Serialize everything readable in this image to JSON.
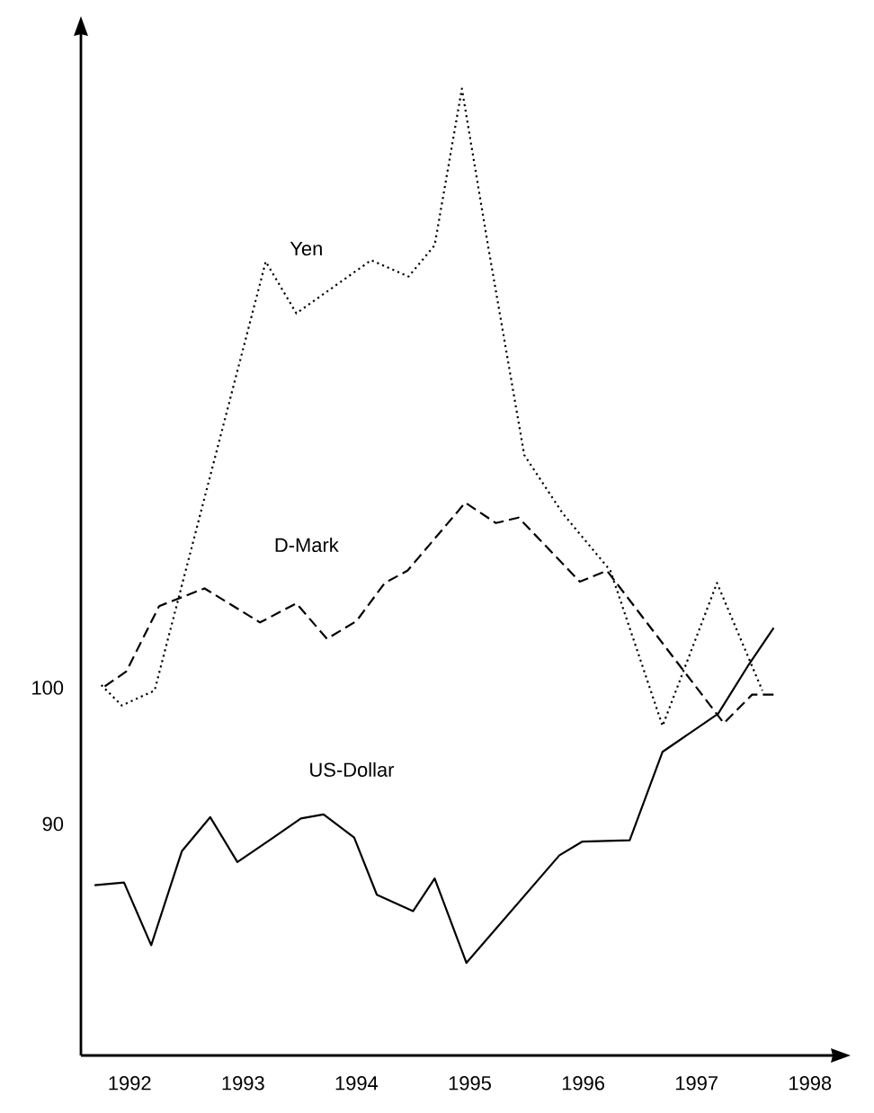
{
  "chart_data": {
    "type": "line",
    "xlim": [
      1991.57,
      1998.2
    ],
    "ylim": [
      73,
      148
    ],
    "xticks": [
      1992,
      1993,
      1994,
      1995,
      1996,
      1997,
      1998
    ],
    "yticks": [
      90,
      100
    ],
    "grid": false,
    "legend": false,
    "marker": "none",
    "series": [
      {
        "name": "Yen",
        "color": "#000000",
        "line_style": "dotted",
        "x": [
          1991.75,
          1991.93,
          1992.22,
          1993.2,
          1993.47,
          1994.13,
          1994.46,
          1994.69,
          1994.93,
          1995.16,
          1995.48,
          1995.82,
          1996.24,
          1996.7,
          1997.18,
          1997.58
        ],
        "values": [
          100.2,
          98.7,
          99.8,
          131.3,
          127.5,
          131.4,
          130.2,
          132.5,
          144.0,
          132.5,
          117.1,
          112.8,
          108.6,
          97.2,
          107.7,
          99.8
        ]
      },
      {
        "name": "D-Mark",
        "color": "#000000",
        "line_style": "dashed",
        "x": [
          1991.78,
          1991.97,
          1992.26,
          1992.66,
          1993.15,
          1993.47,
          1993.74,
          1994.0,
          1994.25,
          1994.45,
          1994.96,
          1995.23,
          1995.43,
          1995.97,
          1996.21,
          1997.24,
          1997.49,
          1997.68
        ],
        "values": [
          100.1,
          101.2,
          106.0,
          107.3,
          104.8,
          106.2,
          103.6,
          104.9,
          107.7,
          108.6,
          113.6,
          112.1,
          112.5,
          107.8,
          108.6,
          97.4,
          99.5,
          99.5
        ]
      },
      {
        "name": "US-Dollar",
        "color": "#000000",
        "line_style": "solid",
        "x": [
          1991.69,
          1991.95,
          1992.19,
          1992.46,
          1992.71,
          1992.95,
          1993.25,
          1993.51,
          1993.71,
          1993.98,
          1994.18,
          1994.5,
          1994.69,
          1994.97,
          1995.79,
          1995.99,
          1996.41,
          1996.7,
          1997.19,
          1997.46,
          1997.68
        ],
        "values": [
          85.5,
          85.7,
          81.1,
          88.0,
          90.5,
          87.2,
          88.9,
          90.4,
          90.7,
          89.0,
          84.8,
          83.6,
          86.0,
          79.8,
          87.7,
          88.7,
          88.8,
          95.3,
          98.1,
          101.7,
          104.4
        ]
      }
    ]
  }
}
